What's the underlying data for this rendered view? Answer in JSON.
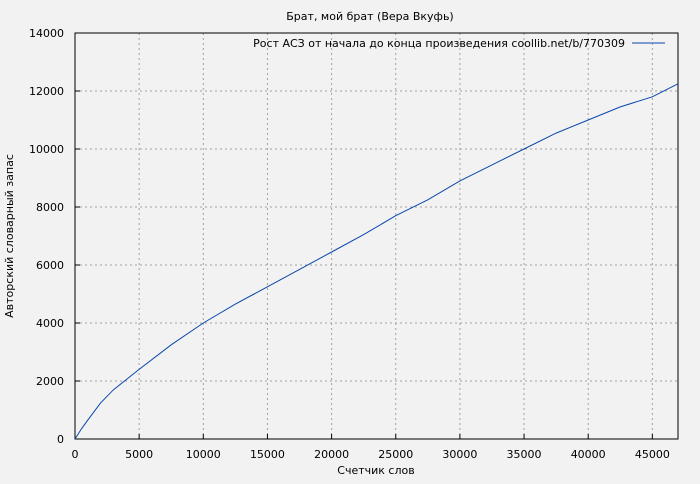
{
  "chart_data": {
    "type": "line",
    "title": "Брат, мой брат (Вера Вкуфь)",
    "xlabel": "Счетчик слов",
    "ylabel": "Авторский словарный запас",
    "xlim": [
      0,
      47000
    ],
    "ylim": [
      0,
      14000
    ],
    "xticks": [
      0,
      5000,
      10000,
      15000,
      20000,
      25000,
      30000,
      35000,
      40000,
      45000
    ],
    "yticks": [
      0,
      2000,
      4000,
      6000,
      8000,
      10000,
      12000,
      14000
    ],
    "grid": true,
    "legend_position": "top-right",
    "series": [
      {
        "name": "Рост АСЗ от начала до конца произведения coollib.net/b/770309",
        "color": "#0b47ad",
        "x": [
          0,
          500,
          1000,
          2000,
          3000,
          4000,
          5000,
          7500,
          10000,
          12500,
          15000,
          17500,
          20000,
          22500,
          25000,
          27500,
          30000,
          32500,
          35000,
          37500,
          40000,
          42500,
          45000,
          47000
        ],
        "y": [
          0,
          350,
          650,
          1250,
          1700,
          2050,
          2400,
          3250,
          4000,
          4650,
          5250,
          5850,
          6450,
          7050,
          7700,
          8250,
          8900,
          9450,
          10000,
          10550,
          11000,
          11450,
          11800,
          12250
        ]
      }
    ]
  }
}
